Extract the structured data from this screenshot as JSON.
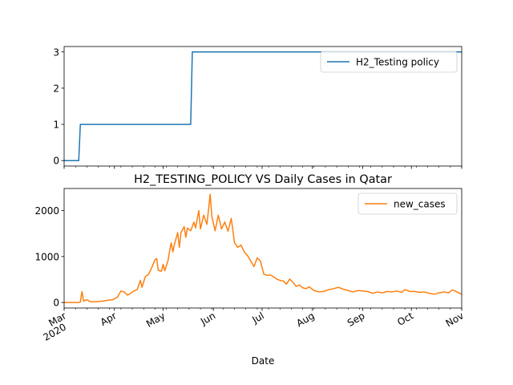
{
  "chart_data": [
    {
      "type": "line",
      "title": "",
      "xlabel": "",
      "ylabel": "",
      "x_start": "2020-03-01",
      "x_end": "2020-11-01",
      "ylim": [
        -0.15,
        3.15
      ],
      "yticks": [
        0,
        1,
        2,
        3
      ],
      "grid": false,
      "legend_position": "top-right",
      "series": [
        {
          "name": "H2_Testing policy",
          "color": "#1f77b4",
          "points": [
            [
              "2020-03-01",
              0
            ],
            [
              "2020-03-10",
              0
            ],
            [
              "2020-03-11",
              1
            ],
            [
              "2020-05-18",
              1
            ],
            [
              "2020-05-19",
              3
            ],
            [
              "2020-11-01",
              3
            ]
          ]
        }
      ]
    },
    {
      "type": "line",
      "title": "H2_TESTING_POLICY VS Daily Cases in Qatar",
      "xlabel": "Date",
      "ylabel": "",
      "x_start": "2020-03-01",
      "x_end": "2020-11-01",
      "ylim": [
        -120,
        2480
      ],
      "yticks": [
        0,
        1000,
        2000
      ],
      "grid": false,
      "legend_position": "top-right",
      "x_tick_labels": [
        {
          "date": "2020-03-01",
          "label": "Mar",
          "sublabel": "2020"
        },
        {
          "date": "2020-04-01",
          "label": "Apr"
        },
        {
          "date": "2020-05-01",
          "label": "May"
        },
        {
          "date": "2020-06-01",
          "label": "Jun"
        },
        {
          "date": "2020-07-01",
          "label": "Jul"
        },
        {
          "date": "2020-08-01",
          "label": "Aug"
        },
        {
          "date": "2020-09-01",
          "label": "Sep"
        },
        {
          "date": "2020-10-01",
          "label": "Oct"
        },
        {
          "date": "2020-11-01",
          "label": "Nov"
        }
      ],
      "series": [
        {
          "name": "new_cases",
          "color": "#ff7f0e",
          "points": [
            [
              "2020-03-01",
              0
            ],
            [
              "2020-03-10",
              0
            ],
            [
              "2020-03-11",
              10
            ],
            [
              "2020-03-12",
              238
            ],
            [
              "2020-03-13",
              30
            ],
            [
              "2020-03-15",
              60
            ],
            [
              "2020-03-17",
              20
            ],
            [
              "2020-03-20",
              15
            ],
            [
              "2020-03-25",
              30
            ],
            [
              "2020-03-28",
              50
            ],
            [
              "2020-03-31",
              60
            ],
            [
              "2020-04-03",
              120
            ],
            [
              "2020-04-05",
              250
            ],
            [
              "2020-04-07",
              230
            ],
            [
              "2020-04-09",
              160
            ],
            [
              "2020-04-11",
              200
            ],
            [
              "2020-04-13",
              250
            ],
            [
              "2020-04-15",
              280
            ],
            [
              "2020-04-17",
              480
            ],
            [
              "2020-04-18",
              330
            ],
            [
              "2020-04-20",
              560
            ],
            [
              "2020-04-22",
              610
            ],
            [
              "2020-04-24",
              760
            ],
            [
              "2020-04-26",
              930
            ],
            [
              "2020-04-27",
              957
            ],
            [
              "2020-04-28",
              700
            ],
            [
              "2020-04-30",
              680
            ],
            [
              "2020-05-01",
              830
            ],
            [
              "2020-05-02",
              690
            ],
            [
              "2020-05-04",
              910
            ],
            [
              "2020-05-05",
              1120
            ],
            [
              "2020-05-06",
              1300
            ],
            [
              "2020-05-07",
              1100
            ],
            [
              "2020-05-08",
              1270
            ],
            [
              "2020-05-10",
              1520
            ],
            [
              "2020-05-11",
              1200
            ],
            [
              "2020-05-12",
              1520
            ],
            [
              "2020-05-14",
              1650
            ],
            [
              "2020-05-15",
              1420
            ],
            [
              "2020-05-16",
              1620
            ],
            [
              "2020-05-18",
              1560
            ],
            [
              "2020-05-20",
              1750
            ],
            [
              "2020-05-21",
              1620
            ],
            [
              "2020-05-23",
              2000
            ],
            [
              "2020-05-24",
              1600
            ],
            [
              "2020-05-26",
              1900
            ],
            [
              "2020-05-28",
              1700
            ],
            [
              "2020-05-30",
              2355
            ],
            [
              "2020-05-31",
              1880
            ],
            [
              "2020-06-02",
              1560
            ],
            [
              "2020-06-04",
              1900
            ],
            [
              "2020-06-06",
              1600
            ],
            [
              "2020-06-08",
              1750
            ],
            [
              "2020-06-10",
              1550
            ],
            [
              "2020-06-12",
              1830
            ],
            [
              "2020-06-14",
              1300
            ],
            [
              "2020-06-16",
              1200
            ],
            [
              "2020-06-18",
              1250
            ],
            [
              "2020-06-20",
              1100
            ],
            [
              "2020-06-22",
              1020
            ],
            [
              "2020-06-24",
              900
            ],
            [
              "2020-06-26",
              780
            ],
            [
              "2020-06-28",
              970
            ],
            [
              "2020-06-30",
              900
            ],
            [
              "2020-07-02",
              620
            ],
            [
              "2020-07-04",
              590
            ],
            [
              "2020-07-06",
              600
            ],
            [
              "2020-07-08",
              560
            ],
            [
              "2020-07-10",
              510
            ],
            [
              "2020-07-12",
              480
            ],
            [
              "2020-07-14",
              470
            ],
            [
              "2020-07-16",
              400
            ],
            [
              "2020-07-18",
              510
            ],
            [
              "2020-07-20",
              440
            ],
            [
              "2020-07-22",
              350
            ],
            [
              "2020-07-24",
              380
            ],
            [
              "2020-07-26",
              320
            ],
            [
              "2020-07-28",
              300
            ],
            [
              "2020-07-30",
              340
            ],
            [
              "2020-08-02",
              260
            ],
            [
              "2020-08-05",
              230
            ],
            [
              "2020-08-08",
              240
            ],
            [
              "2020-08-11",
              280
            ],
            [
              "2020-08-14",
              300
            ],
            [
              "2020-08-17",
              330
            ],
            [
              "2020-08-20",
              290
            ],
            [
              "2020-08-23",
              260
            ],
            [
              "2020-08-26",
              230
            ],
            [
              "2020-08-29",
              260
            ],
            [
              "2020-09-01",
              250
            ],
            [
              "2020-09-04",
              240
            ],
            [
              "2020-09-07",
              200
            ],
            [
              "2020-09-10",
              230
            ],
            [
              "2020-09-13",
              210
            ],
            [
              "2020-09-16",
              240
            ],
            [
              "2020-09-19",
              230
            ],
            [
              "2020-09-22",
              250
            ],
            [
              "2020-09-25",
              220
            ],
            [
              "2020-09-27",
              280
            ],
            [
              "2020-09-30",
              240
            ],
            [
              "2020-10-03",
              240
            ],
            [
              "2020-10-06",
              220
            ],
            [
              "2020-10-09",
              230
            ],
            [
              "2020-10-12",
              200
            ],
            [
              "2020-10-15",
              180
            ],
            [
              "2020-10-18",
              210
            ],
            [
              "2020-10-21",
              230
            ],
            [
              "2020-10-24",
              210
            ],
            [
              "2020-10-26",
              270
            ],
            [
              "2020-10-28",
              250
            ],
            [
              "2020-10-30",
              210
            ],
            [
              "2020-11-01",
              180
            ]
          ]
        }
      ]
    }
  ]
}
